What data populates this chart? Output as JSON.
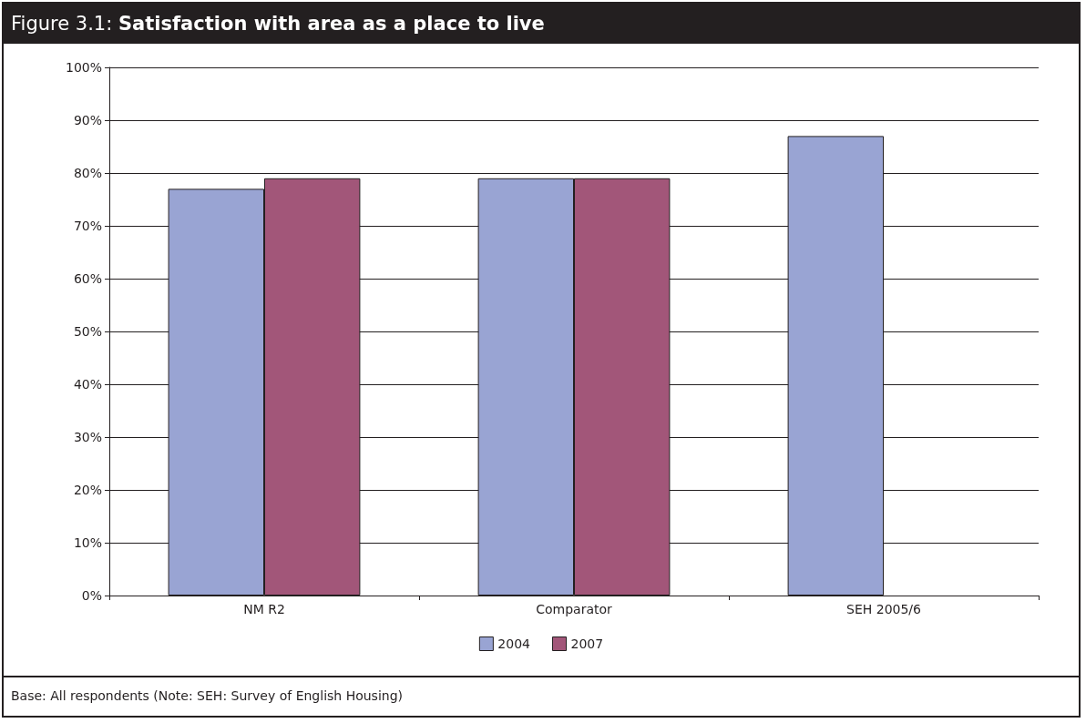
{
  "chart_data": {
    "type": "bar",
    "title": "Figure 3.1: ",
    "subtitle": "Satisfaction with area as a place to live",
    "categories": [
      "NM R2",
      "Comparator",
      "SEH 2005/6"
    ],
    "series": [
      {
        "name": "2004",
        "color": "#99a4d3",
        "values": [
          77,
          79,
          87
        ]
      },
      {
        "name": "2007",
        "color": "#a25679",
        "values": [
          79,
          79,
          null
        ]
      }
    ],
    "ylim": [
      0,
      100
    ],
    "yticks": [
      {
        "value": 0,
        "label": "0%"
      },
      {
        "value": 10,
        "label": "10%"
      },
      {
        "value": 20,
        "label": "20%"
      },
      {
        "value": 30,
        "label": "30%"
      },
      {
        "value": 40,
        "label": "40%"
      },
      {
        "value": 50,
        "label": "50%"
      },
      {
        "value": 60,
        "label": "60%"
      },
      {
        "value": 70,
        "label": "70%"
      },
      {
        "value": 80,
        "label": "80%"
      },
      {
        "value": 90,
        "label": "90%"
      },
      {
        "value": 100,
        "label": "100%"
      }
    ],
    "grid": "y",
    "legend": "bottom",
    "annotations": [
      "Base: All respondents (Note: SEH: Survey of English Housing)"
    ]
  }
}
